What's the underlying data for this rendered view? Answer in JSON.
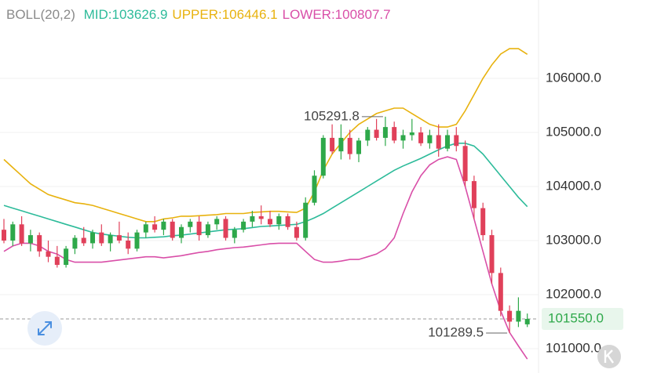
{
  "chart_data": {
    "type": "candlestick",
    "indicator": "BOLL(20,2)",
    "up_color": "#2ea84a",
    "down_color": "#e0405a",
    "ylim": [
      100550,
      107450
    ],
    "yticks": [
      {
        "value": 101000,
        "label": "101000.0"
      },
      {
        "value": 102000,
        "label": "102000.0"
      },
      {
        "value": 103000,
        "label": "103000.0"
      },
      {
        "value": 104000,
        "label": "104000.0"
      },
      {
        "value": 105000,
        "label": "105000.0"
      },
      {
        "value": 106000,
        "label": "106000.0"
      }
    ],
    "grid": true,
    "last_price": {
      "value": 101550,
      "label": "101550.0"
    },
    "annotations": [
      {
        "value": 105291.8,
        "label": "105291.8"
      },
      {
        "value": 101289.5,
        "label": "101289.5"
      }
    ],
    "open": [
      103200,
      103000,
      103300,
      102950,
      103100,
      102800,
      102700,
      102550,
      102850,
      103050,
      102950,
      103150,
      102950,
      103100,
      103000,
      102850,
      103150,
      103300,
      103200,
      103350,
      103050,
      103250,
      103350,
      103100,
      103300,
      103400,
      103050,
      103200,
      103350,
      103450,
      103400,
      103300,
      103450,
      103250,
      103050,
      103700,
      104200,
      104900,
      104650,
      104900,
      104600,
      104850,
      105050,
      104900,
      105100,
      104850,
      104950,
      105000,
      104800,
      104950,
      104700,
      104950,
      104750,
      104100,
      103600,
      103100,
      102400,
      101700,
      101500,
      101450
    ],
    "high": [
      103400,
      103350,
      103450,
      103200,
      103150,
      103000,
      102900,
      102900,
      103100,
      103250,
      103200,
      103300,
      103150,
      103350,
      103150,
      103200,
      103350,
      103450,
      103400,
      103400,
      103300,
      103400,
      103450,
      103350,
      103450,
      103450,
      103250,
      103400,
      103550,
      103650,
      103550,
      103500,
      103500,
      103350,
      103800,
      104300,
      104950,
      105150,
      105150,
      105050,
      104900,
      105100,
      105250,
      105291.8,
      105200,
      105050,
      105250,
      105100,
      105050,
      105150,
      105050,
      105100,
      104850,
      104200,
      103700,
      103200,
      102500,
      101800,
      101950,
      101650
    ],
    "low": [
      102950,
      102900,
      102900,
      102800,
      102700,
      102600,
      102500,
      102500,
      102750,
      102900,
      102850,
      102900,
      102800,
      102950,
      102750,
      102800,
      103050,
      103150,
      103100,
      103000,
      102950,
      103150,
      103000,
      103050,
      103200,
      103000,
      102950,
      103150,
      103250,
      103300,
      103250,
      103200,
      103200,
      103000,
      103000,
      103650,
      104150,
      104600,
      104500,
      104500,
      104450,
      104750,
      104850,
      104750,
      104800,
      104700,
      104850,
      104750,
      104700,
      104550,
      104650,
      104650,
      104000,
      103400,
      103000,
      102200,
      101600,
      101289.5,
      101400,
      101400
    ],
    "close": [
      103000,
      103300,
      102950,
      103100,
      102800,
      102700,
      102550,
      102850,
      103050,
      102950,
      103150,
      102950,
      103100,
      103000,
      102850,
      103150,
      103300,
      103200,
      103350,
      103050,
      103250,
      103350,
      103100,
      103300,
      103400,
      103050,
      103200,
      103350,
      103450,
      103400,
      103300,
      103450,
      103250,
      103050,
      103700,
      104200,
      104900,
      104650,
      104900,
      104600,
      104850,
      105050,
      104900,
      105100,
      104850,
      104950,
      105000,
      104800,
      104950,
      104700,
      104950,
      104750,
      104100,
      103600,
      103100,
      102400,
      101700,
      101500,
      101700,
      101550
    ],
    "bands": [
      {
        "legend": "MID:103626.9",
        "color": "#2dbb9a",
        "values": [
          103650,
          103600,
          103550,
          103500,
          103450,
          103400,
          103350,
          103300,
          103250,
          103200,
          103150,
          103120,
          103100,
          103080,
          103060,
          103050,
          103050,
          103060,
          103070,
          103090,
          103100,
          103120,
          103140,
          103160,
          103180,
          103200,
          103210,
          103220,
          103240,
          103260,
          103270,
          103280,
          103290,
          103300,
          103350,
          103420,
          103500,
          103600,
          103700,
          103800,
          103900,
          104000,
          104100,
          104200,
          104300,
          104380,
          104450,
          104520,
          104600,
          104680,
          104750,
          104800,
          104800,
          104750,
          104600,
          104400,
          104200,
          104000,
          103800,
          103626.9
        ]
      },
      {
        "legend": "UPPER:106446.1",
        "color": "#e8b20e",
        "values": [
          104500,
          104350,
          104200,
          104050,
          103950,
          103850,
          103800,
          103750,
          103700,
          103680,
          103650,
          103600,
          103550,
          103500,
          103450,
          103400,
          103350,
          103350,
          103400,
          103420,
          103450,
          103450,
          103460,
          103470,
          103480,
          103500,
          103500,
          103500,
          103520,
          103530,
          103540,
          103540,
          103530,
          103520,
          103600,
          103900,
          104300,
          104600,
          104800,
          105000,
          105150,
          105250,
          105350,
          105400,
          105450,
          105450,
          105350,
          105250,
          105150,
          105100,
          105100,
          105150,
          105400,
          105700,
          106000,
          106250,
          106450,
          106550,
          106550,
          106446.1
        ]
      },
      {
        "legend": "LOWER:100807.7",
        "color": "#d94fa8",
        "values": [
          102800,
          102900,
          102950,
          102950,
          102900,
          102800,
          102750,
          102650,
          102600,
          102600,
          102600,
          102600,
          102620,
          102640,
          102660,
          102680,
          102700,
          102700,
          102680,
          102700,
          102720,
          102750,
          102780,
          102800,
          102830,
          102850,
          102870,
          102880,
          102900,
          102920,
          102940,
          102950,
          102950,
          102950,
          102800,
          102650,
          102600,
          102600,
          102620,
          102650,
          102650,
          102700,
          102750,
          102850,
          103050,
          103500,
          103900,
          104200,
          104400,
          104500,
          104550,
          104500,
          104000,
          103400,
          102800,
          102200,
          101700,
          101300,
          101050,
          100807.7
        ]
      }
    ]
  }
}
